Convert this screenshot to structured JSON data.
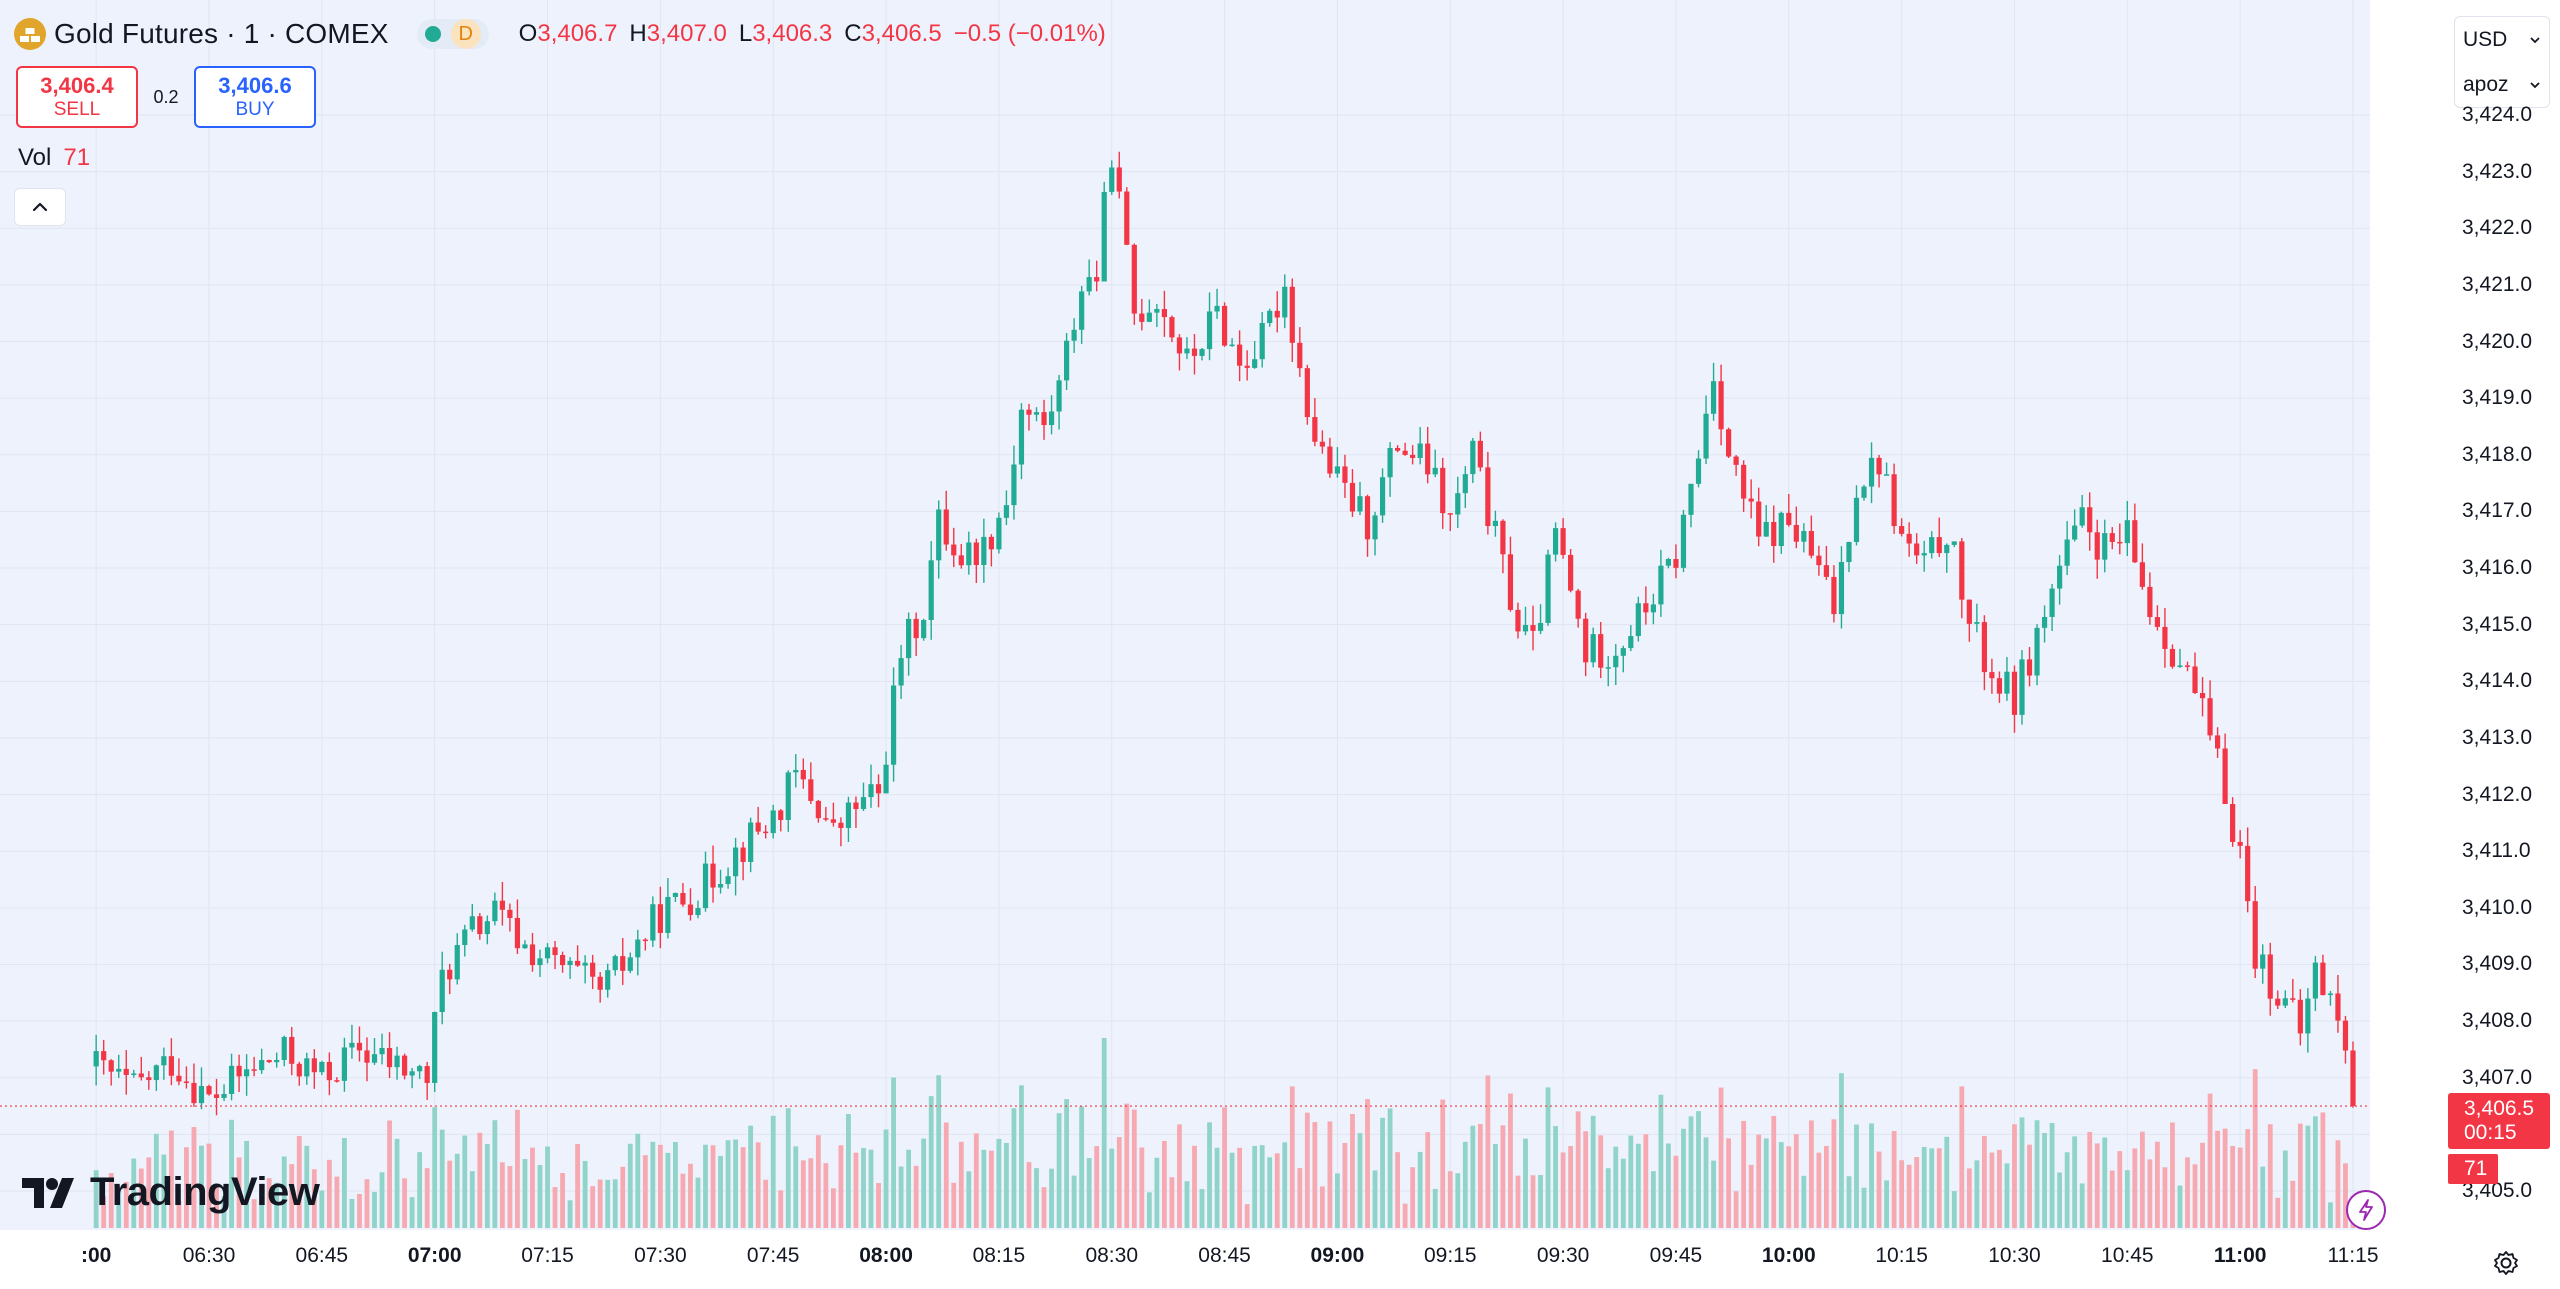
{
  "header": {
    "symbol": "Gold Futures · 1 · COMEX",
    "interval_badge": "D",
    "ohlc": {
      "o_label": "O",
      "o": "3,406.7",
      "h_label": "H",
      "h": "3,407.0",
      "l_label": "L",
      "l": "3,406.3",
      "c_label": "C",
      "c": "3,406.5",
      "change": "−0.5 (−0.01%)"
    }
  },
  "trade": {
    "sell_price": "3,406.4",
    "sell_label": "SELL",
    "spread": "0.2",
    "buy_price": "3,406.6",
    "buy_label": "BUY"
  },
  "volume_legend": {
    "label": "Vol",
    "value": "71"
  },
  "brand": {
    "name": "TradingView"
  },
  "axis_menu": {
    "currency": "USD",
    "unit": "apoz"
  },
  "last_price": {
    "price": "3,406.5",
    "countdown": "00:15",
    "volume": "71"
  },
  "colors": {
    "up": "#22ab94",
    "down": "#f23645",
    "up_volume": "#8fd3c9",
    "down_volume": "#f6a9b0",
    "background": "#eef2fc"
  },
  "chart_data": {
    "type": "candlestick",
    "title": "Gold Futures · 1 · COMEX",
    "interval_minutes": 1,
    "ylim": [
      3404.5,
      3424.2
    ],
    "y_ticks": [
      "3,405.0",
      "3,406.0",
      "3,407.0",
      "3,408.0",
      "3,409.0",
      "3,410.0",
      "3,411.0",
      "3,412.0",
      "3,413.0",
      "3,414.0",
      "3,415.0",
      "3,416.0",
      "3,417.0",
      "3,418.0",
      "3,419.0",
      "3,420.0",
      "3,421.0",
      "3,422.0",
      "3,423.0",
      "3,424.0"
    ],
    "x_ticks": [
      {
        "label": ":00",
        "time": "06:15",
        "bold": true
      },
      {
        "label": "06:30",
        "time": "06:30",
        "bold": false
      },
      {
        "label": "06:45",
        "time": "06:45",
        "bold": false
      },
      {
        "label": "07:00",
        "time": "07:00",
        "bold": true
      },
      {
        "label": "07:15",
        "time": "07:15",
        "bold": false
      },
      {
        "label": "07:30",
        "time": "07:30",
        "bold": false
      },
      {
        "label": "07:45",
        "time": "07:45",
        "bold": false
      },
      {
        "label": "08:00",
        "time": "08:00",
        "bold": true
      },
      {
        "label": "08:15",
        "time": "08:15",
        "bold": false
      },
      {
        "label": "08:30",
        "time": "08:30",
        "bold": false
      },
      {
        "label": "08:45",
        "time": "08:45",
        "bold": false
      },
      {
        "label": "09:00",
        "time": "09:00",
        "bold": true
      },
      {
        "label": "09:15",
        "time": "09:15",
        "bold": false
      },
      {
        "label": "09:30",
        "time": "09:30",
        "bold": false
      },
      {
        "label": "09:45",
        "time": "09:45",
        "bold": false
      },
      {
        "label": "10:00",
        "time": "10:00",
        "bold": true
      },
      {
        "label": "10:15",
        "time": "10:15",
        "bold": false
      },
      {
        "label": "10:30",
        "time": "10:30",
        "bold": false
      },
      {
        "label": "10:45",
        "time": "10:45",
        "bold": false
      },
      {
        "label": "11:00",
        "time": "11:00",
        "bold": true
      },
      {
        "label": "11:15",
        "time": "11:15",
        "bold": false
      }
    ],
    "close_path": [
      {
        "time": "06:15",
        "close": 3407.2
      },
      {
        "time": "06:20",
        "close": 3406.8
      },
      {
        "time": "06:25",
        "close": 3407.3
      },
      {
        "time": "06:30",
        "close": 3406.6
      },
      {
        "time": "06:35",
        "close": 3407.1
      },
      {
        "time": "06:40",
        "close": 3407.4
      },
      {
        "time": "06:45",
        "close": 3407.0
      },
      {
        "time": "06:50",
        "close": 3407.5
      },
      {
        "time": "06:55",
        "close": 3407.2
      },
      {
        "time": "06:59",
        "close": 3407.0
      },
      {
        "time": "07:01",
        "close": 3408.8
      },
      {
        "time": "07:05",
        "close": 3409.6
      },
      {
        "time": "07:08",
        "close": 3409.9
      },
      {
        "time": "07:12",
        "close": 3409.3
      },
      {
        "time": "07:16",
        "close": 3409.0
      },
      {
        "time": "07:20",
        "close": 3408.7
      },
      {
        "time": "07:22",
        "close": 3408.5
      },
      {
        "time": "07:25",
        "close": 3409.0
      },
      {
        "time": "07:30",
        "close": 3409.9
      },
      {
        "time": "07:35",
        "close": 3410.3
      },
      {
        "time": "07:40",
        "close": 3411.0
      },
      {
        "time": "07:45",
        "close": 3411.6
      },
      {
        "time": "07:48",
        "close": 3412.3
      },
      {
        "time": "07:51",
        "close": 3411.8
      },
      {
        "time": "07:53",
        "close": 3411.3
      },
      {
        "time": "07:56",
        "close": 3411.8
      },
      {
        "time": "07:59",
        "close": 3412.0
      },
      {
        "time": "08:02",
        "close": 3414.5
      },
      {
        "time": "08:05",
        "close": 3415.3
      },
      {
        "time": "08:07",
        "close": 3416.8
      },
      {
        "time": "08:10",
        "close": 3416.2
      },
      {
        "time": "08:13",
        "close": 3416.4
      },
      {
        "time": "08:16",
        "close": 3417.2
      },
      {
        "time": "08:18",
        "close": 3418.8
      },
      {
        "time": "08:21",
        "close": 3418.5
      },
      {
        "time": "08:23",
        "close": 3419.2
      },
      {
        "time": "08:26",
        "close": 3421.0
      },
      {
        "time": "08:28",
        "close": 3421.2
      },
      {
        "time": "08:30",
        "close": 3423.4
      },
      {
        "time": "08:31",
        "close": 3422.4
      },
      {
        "time": "08:33",
        "close": 3420.5
      },
      {
        "time": "08:36",
        "close": 3420.8
      },
      {
        "time": "08:40",
        "close": 3419.6
      },
      {
        "time": "08:44",
        "close": 3420.5
      },
      {
        "time": "08:47",
        "close": 3419.6
      },
      {
        "time": "08:50",
        "close": 3420.0
      },
      {
        "time": "08:53",
        "close": 3421.0
      },
      {
        "time": "08:55",
        "close": 3419.5
      },
      {
        "time": "08:57",
        "close": 3418.3
      },
      {
        "time": "09:00",
        "close": 3417.5
      },
      {
        "time": "09:04",
        "close": 3416.8
      },
      {
        "time": "09:08",
        "close": 3418.2
      },
      {
        "time": "09:12",
        "close": 3417.8
      },
      {
        "time": "09:15",
        "close": 3416.8
      },
      {
        "time": "09:18",
        "close": 3418.0
      },
      {
        "time": "09:21",
        "close": 3416.5
      },
      {
        "time": "09:24",
        "close": 3415.0
      },
      {
        "time": "09:26",
        "close": 3414.6
      },
      {
        "time": "09:29",
        "close": 3416.6
      },
      {
        "time": "09:33",
        "close": 3414.5
      },
      {
        "time": "09:37",
        "close": 3414.6
      },
      {
        "time": "09:41",
        "close": 3415.3
      },
      {
        "time": "09:45",
        "close": 3416.2
      },
      {
        "time": "09:48",
        "close": 3418.0
      },
      {
        "time": "09:50",
        "close": 3419.5
      },
      {
        "time": "09:52",
        "close": 3418.0
      },
      {
        "time": "09:56",
        "close": 3416.5
      },
      {
        "time": "10:00",
        "close": 3416.8
      },
      {
        "time": "10:03",
        "close": 3416.2
      },
      {
        "time": "10:06",
        "close": 3415.3
      },
      {
        "time": "10:09",
        "close": 3417.5
      },
      {
        "time": "10:12",
        "close": 3417.9
      },
      {
        "time": "10:15",
        "close": 3416.5
      },
      {
        "time": "10:18",
        "close": 3416.0
      },
      {
        "time": "10:21",
        "close": 3416.7
      },
      {
        "time": "10:24",
        "close": 3415.0
      },
      {
        "time": "10:27",
        "close": 3414.1
      },
      {
        "time": "10:30",
        "close": 3413.7
      },
      {
        "time": "10:33",
        "close": 3414.8
      },
      {
        "time": "10:36",
        "close": 3416.0
      },
      {
        "time": "10:39",
        "close": 3416.8
      },
      {
        "time": "10:42",
        "close": 3416.3
      },
      {
        "time": "10:45",
        "close": 3416.5
      },
      {
        "time": "10:48",
        "close": 3415.3
      },
      {
        "time": "10:51",
        "close": 3414.6
      },
      {
        "time": "10:54",
        "close": 3413.8
      },
      {
        "time": "10:57",
        "close": 3412.5
      },
      {
        "time": "11:00",
        "close": 3411.0
      },
      {
        "time": "11:02",
        "close": 3409.2
      },
      {
        "time": "11:05",
        "close": 3408.5
      },
      {
        "time": "11:08",
        "close": 3407.8
      },
      {
        "time": "11:10",
        "close": 3408.9
      },
      {
        "time": "11:13",
        "close": 3408.1
      },
      {
        "time": "11:15",
        "close": 3406.5
      }
    ],
    "volume_range": [
      0,
      420
    ],
    "last_volume": 71
  }
}
